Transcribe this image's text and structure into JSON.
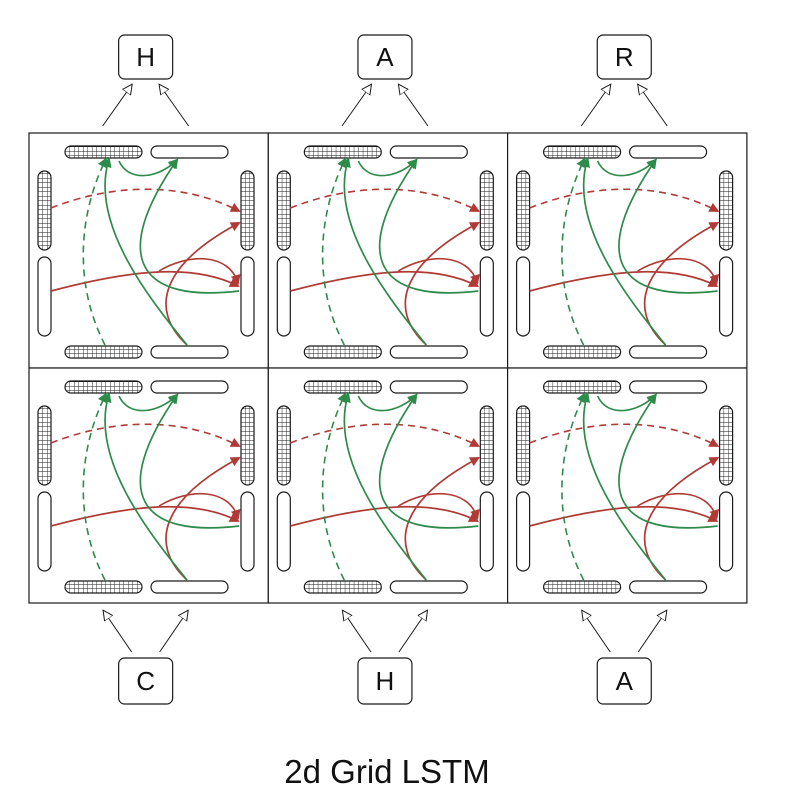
{
  "title": "2d Grid LSTM",
  "output_labels": [
    "H",
    "A",
    "R"
  ],
  "input_labels": [
    "C",
    "H",
    "A"
  ],
  "grid": {
    "rows": 2,
    "cols": 3
  },
  "colors": {
    "forward_green": "#2e8b4a",
    "memory_red": "#b03a35",
    "outline": "#1a1a1a"
  }
}
